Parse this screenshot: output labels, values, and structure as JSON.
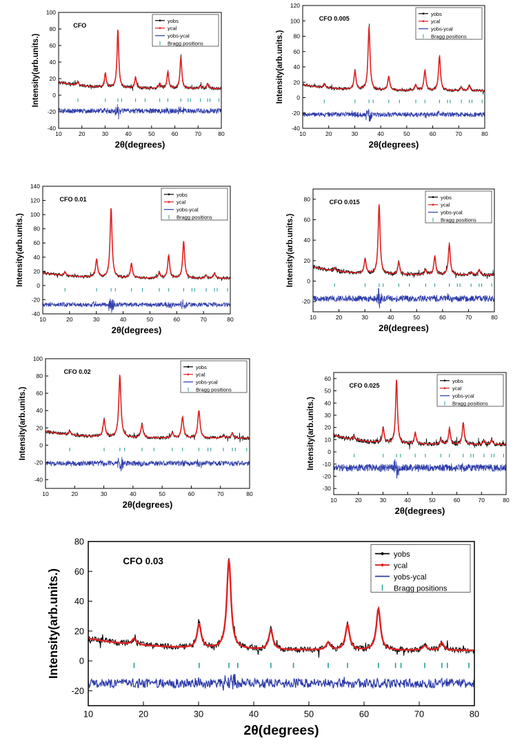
{
  "colors": {
    "observed": "#000000",
    "calculated": "#e02020",
    "difference": "#2b3aa8",
    "bragg": "#2aa198",
    "axis": "#000000"
  },
  "chart_data": [
    {
      "type": "line",
      "title": "CFO",
      "xlabel": "2θ(degrees)",
      "ylabel": "Intensity(arb.units.)",
      "xlim": [
        10,
        80
      ],
      "ylim": [
        -40,
        100
      ],
      "xticks": [
        10,
        20,
        30,
        40,
        50,
        60,
        70,
        80
      ],
      "yticks": [
        -40,
        -20,
        0,
        20,
        40,
        60,
        80,
        100
      ],
      "legend": {
        "placement": "top-right",
        "entries": [
          "yobs",
          "ycal",
          "yobs-ycal",
          "Bragg positions"
        ]
      },
      "grid": false,
      "background": 8,
      "diff_offset": -19,
      "bragg_level": -6,
      "peaks": [
        [
          18.3,
          4
        ],
        [
          30.1,
          17
        ],
        [
          35.5,
          70
        ],
        [
          43.1,
          13
        ],
        [
          53.5,
          6
        ],
        [
          57.0,
          20
        ],
        [
          62.6,
          38
        ],
        [
          71.0,
          3
        ],
        [
          74.1,
          6
        ]
      ],
      "series": [
        {
          "name": "yobs"
        },
        {
          "name": "ycal"
        },
        {
          "name": "yobs-ycal"
        },
        {
          "name": "Bragg positions"
        }
      ]
    },
    {
      "type": "line",
      "title": "CFO 0.005",
      "xlabel": "2θ(degrees)",
      "ylabel": "Intensity(arb.units.)",
      "xlim": [
        10,
        80
      ],
      "ylim": [
        -40,
        120
      ],
      "xticks": [
        10,
        20,
        30,
        40,
        50,
        60,
        70,
        80
      ],
      "yticks": [
        -40,
        -20,
        0,
        20,
        40,
        60,
        80,
        100,
        120
      ],
      "legend": {
        "placement": "top-right",
        "entries": [
          "yobs",
          "ycal",
          "yobs-ycal",
          "Bragg positions"
        ]
      },
      "grid": false,
      "background": 9,
      "diff_offset": -22,
      "bragg_level": -5,
      "peaks": [
        [
          18.3,
          5
        ],
        [
          30.1,
          24
        ],
        [
          35.5,
          82
        ],
        [
          43.1,
          18
        ],
        [
          53.5,
          7
        ],
        [
          57.0,
          26
        ],
        [
          62.6,
          45
        ],
        [
          71.0,
          4
        ],
        [
          74.1,
          6
        ]
      ],
      "series": [
        {
          "name": "yobs"
        },
        {
          "name": "ycal"
        },
        {
          "name": "yobs-ycal"
        },
        {
          "name": "Bragg positions"
        }
      ]
    },
    {
      "type": "line",
      "title": "CFO 0.01",
      "xlabel": "2θ(degrees)",
      "ylabel": "Intensity(arb.units.)",
      "xlim": [
        10,
        80
      ],
      "ylim": [
        -40,
        140
      ],
      "xticks": [
        10,
        20,
        30,
        40,
        50,
        60,
        70,
        80
      ],
      "yticks": [
        -40,
        -20,
        0,
        20,
        40,
        60,
        80,
        100,
        120,
        140
      ],
      "legend": {
        "placement": "top-right",
        "entries": [
          "yobs",
          "ycal",
          "yobs-ycal",
          "Bragg positions"
        ]
      },
      "grid": false,
      "background": 10,
      "diff_offset": -27,
      "bragg_level": -6,
      "peaks": [
        [
          18.3,
          5
        ],
        [
          30.1,
          25
        ],
        [
          35.5,
          98
        ],
        [
          43.1,
          20
        ],
        [
          53.5,
          8
        ],
        [
          57.0,
          32
        ],
        [
          62.6,
          52
        ],
        [
          71.0,
          4
        ],
        [
          74.1,
          7
        ]
      ],
      "series": [
        {
          "name": "yobs"
        },
        {
          "name": "ycal"
        },
        {
          "name": "yobs-ycal"
        },
        {
          "name": "Bragg positions"
        }
      ]
    },
    {
      "type": "line",
      "title": "CFO 0.015",
      "xlabel": "2θ(degrees)",
      "ylabel": "Intensity(arb.units.)",
      "xlim": [
        10,
        80
      ],
      "ylim": [
        -30,
        90
      ],
      "xticks": [
        10,
        20,
        30,
        40,
        50,
        60,
        70,
        80
      ],
      "yticks": [
        -20,
        0,
        20,
        40,
        60,
        80
      ],
      "legend": {
        "placement": "top-right",
        "entries": [
          "yobs",
          "ycal",
          "yobs-ycal",
          "Bragg positions"
        ]
      },
      "grid": false,
      "background": 6,
      "diff_offset": -17,
      "bragg_level": -4,
      "peaks": [
        [
          18.3,
          3
        ],
        [
          30.1,
          14
        ],
        [
          35.5,
          68
        ],
        [
          43.1,
          12
        ],
        [
          53.5,
          5
        ],
        [
          57.0,
          18
        ],
        [
          62.6,
          30
        ],
        [
          71.0,
          3
        ],
        [
          74.1,
          5
        ]
      ],
      "series": [
        {
          "name": "yobs"
        },
        {
          "name": "ycal"
        },
        {
          "name": "yobs-ycal"
        },
        {
          "name": "Bragg positions"
        }
      ]
    },
    {
      "type": "line",
      "title": "CFO 0.02",
      "xlabel": "2θ(degrees)",
      "ylabel": "Intensity(arb.units.)",
      "xlim": [
        10,
        80
      ],
      "ylim": [
        -50,
        100
      ],
      "xticks": [
        10,
        20,
        30,
        40,
        50,
        60,
        70,
        80
      ],
      "yticks": [
        -40,
        -20,
        0,
        20,
        40,
        60,
        80,
        100
      ],
      "legend": {
        "placement": "top-right",
        "entries": [
          "yobs",
          "ycal",
          "yobs-ycal",
          "Bragg positions"
        ]
      },
      "grid": false,
      "background": 8,
      "diff_offset": -21,
      "bragg_level": -5,
      "peaks": [
        [
          18.3,
          4
        ],
        [
          30.1,
          20
        ],
        [
          35.5,
          72
        ],
        [
          43.1,
          15
        ],
        [
          53.5,
          6
        ],
        [
          57.0,
          24
        ],
        [
          62.6,
          32
        ],
        [
          71.0,
          3
        ],
        [
          74.1,
          6
        ]
      ],
      "series": [
        {
          "name": "yobs"
        },
        {
          "name": "ycal"
        },
        {
          "name": "yobs-ycal"
        },
        {
          "name": "Bragg positions"
        }
      ]
    },
    {
      "type": "line",
      "title": "CFO 0.025",
      "xlabel": "2θ(degrees)",
      "ylabel": "Intensity(arb.units.)",
      "xlim": [
        10,
        80
      ],
      "ylim": [
        -35,
        65
      ],
      "xticks": [
        10,
        20,
        30,
        40,
        50,
        60,
        70,
        80
      ],
      "yticks": [
        -30,
        -20,
        -10,
        0,
        10,
        20,
        30,
        40,
        50,
        60
      ],
      "legend": {
        "placement": "top-right",
        "entries": [
          "yobs",
          "ycal",
          "yobs-ycal",
          "Bragg positions"
        ]
      },
      "grid": false,
      "background": 6,
      "diff_offset": -13,
      "bragg_level": -3,
      "peaks": [
        [
          18.3,
          3
        ],
        [
          30.1,
          12
        ],
        [
          35.5,
          52
        ],
        [
          43.1,
          9
        ],
        [
          53.5,
          4
        ],
        [
          57.0,
          13
        ],
        [
          62.6,
          18
        ],
        [
          71.0,
          3
        ],
        [
          74.1,
          4
        ]
      ],
      "series": [
        {
          "name": "yobs"
        },
        {
          "name": "ycal"
        },
        {
          "name": "yobs-ycal"
        },
        {
          "name": "Bragg positions"
        }
      ]
    },
    {
      "type": "line",
      "title": "CFO 0.03",
      "xlabel": "2θ(degrees)",
      "ylabel": "Intensity(arb.units.)",
      "xlim": [
        10,
        80
      ],
      "ylim": [
        -30,
        80
      ],
      "xticks": [
        10,
        20,
        30,
        40,
        50,
        60,
        70,
        80
      ],
      "yticks": [
        -20,
        0,
        20,
        40,
        60,
        80
      ],
      "legend": {
        "placement": "top-right",
        "entries": [
          "yobs",
          "ycal",
          "yobs-ycal",
          "Bragg positions"
        ]
      },
      "grid": false,
      "background": 7,
      "diff_offset": -15,
      "bragg_level": -3,
      "peaks": [
        [
          18.3,
          4
        ],
        [
          30.1,
          16
        ],
        [
          35.5,
          60
        ],
        [
          43.1,
          13
        ],
        [
          53.5,
          5
        ],
        [
          57.0,
          17
        ],
        [
          62.6,
          28
        ],
        [
          71.0,
          3
        ],
        [
          74.1,
          5
        ]
      ],
      "series": [
        {
          "name": "yobs"
        },
        {
          "name": "ycal"
        },
        {
          "name": "yobs-ycal"
        },
        {
          "name": "Bragg positions"
        }
      ]
    }
  ]
}
